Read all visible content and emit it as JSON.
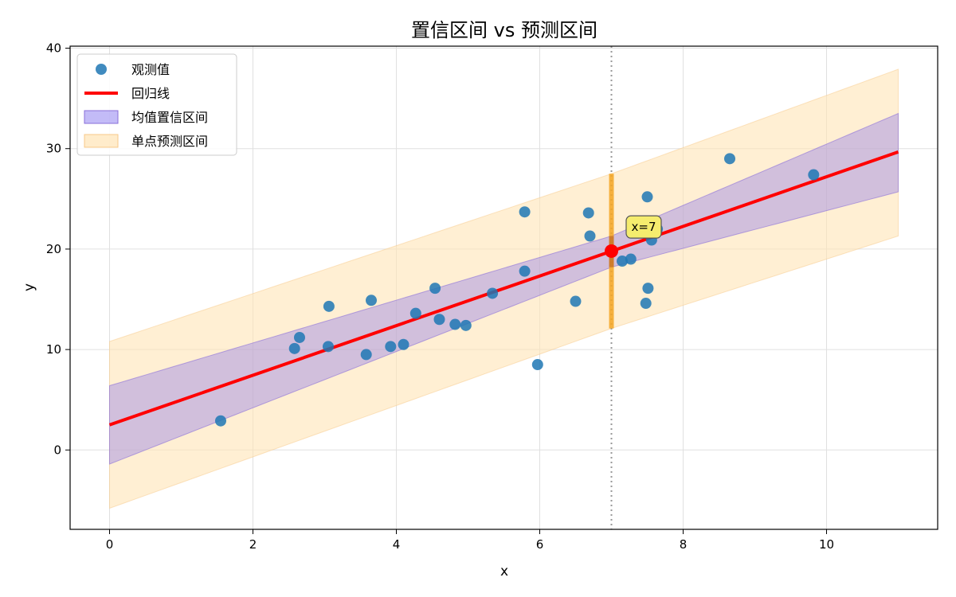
{
  "chart_data": {
    "type": "scatter",
    "title": "置信区间 vs 预测区间",
    "xlabel": "x",
    "ylabel": "y",
    "xlim": [
      -0.55,
      11.55
    ],
    "ylim": [
      -7.9,
      40.2
    ],
    "xticks": [
      0,
      2,
      4,
      6,
      8,
      10
    ],
    "yticks": [
      0,
      10,
      20,
      30,
      40
    ],
    "grid": true,
    "legend_position": "top-left",
    "colors": {
      "points": "#1f77b4",
      "regression": "#ff0000",
      "confidence": "#7b68ee",
      "prediction": "#ffe4b5",
      "marker_line": "#f5a623",
      "highlight_point": "#ff0000",
      "annotation_bg": "#f5ec6e"
    },
    "legend": [
      {
        "label": "观测值",
        "kind": "points"
      },
      {
        "label": "回归线",
        "kind": "line"
      },
      {
        "label": "均值置信区间",
        "kind": "confidence"
      },
      {
        "label": "单点预测区间",
        "kind": "prediction"
      }
    ],
    "regression": {
      "intercept": 2.5,
      "slope": 2.47,
      "x_range": [
        0,
        11
      ]
    },
    "confidence_band": {
      "x": [
        0,
        7,
        11
      ],
      "lower": [
        -1.4,
        18.2,
        25.7
      ],
      "upper": [
        6.4,
        21.3,
        33.5
      ]
    },
    "prediction_band": {
      "x": [
        0,
        7,
        11
      ],
      "lower": [
        -5.8,
        12.1,
        21.3
      ],
      "upper": [
        10.8,
        27.5,
        37.9
      ]
    },
    "vline_x": 7,
    "point_at_x": {
      "x": 7,
      "y": 19.8,
      "ci": [
        18.2,
        21.3
      ],
      "pi": [
        12.1,
        27.5
      ]
    },
    "annotation": {
      "text": "x=7",
      "x": 7.45,
      "y": 22.2
    },
    "points": [
      {
        "x": 1.55,
        "y": 2.9
      },
      {
        "x": 2.58,
        "y": 10.1
      },
      {
        "x": 2.65,
        "y": 11.2
      },
      {
        "x": 3.05,
        "y": 10.3
      },
      {
        "x": 3.06,
        "y": 14.3
      },
      {
        "x": 3.58,
        "y": 9.5
      },
      {
        "x": 3.65,
        "y": 14.9
      },
      {
        "x": 3.92,
        "y": 10.3
      },
      {
        "x": 4.1,
        "y": 10.5
      },
      {
        "x": 4.27,
        "y": 13.6
      },
      {
        "x": 4.54,
        "y": 16.1
      },
      {
        "x": 4.6,
        "y": 13.0
      },
      {
        "x": 4.82,
        "y": 12.5
      },
      {
        "x": 4.97,
        "y": 12.4
      },
      {
        "x": 5.34,
        "y": 15.6
      },
      {
        "x": 5.79,
        "y": 23.7
      },
      {
        "x": 5.79,
        "y": 17.8
      },
      {
        "x": 5.97,
        "y": 8.5
      },
      {
        "x": 6.5,
        "y": 14.8
      },
      {
        "x": 6.68,
        "y": 23.6
      },
      {
        "x": 6.7,
        "y": 21.3
      },
      {
        "x": 7.15,
        "y": 18.8
      },
      {
        "x": 7.27,
        "y": 19.0
      },
      {
        "x": 7.48,
        "y": 14.6
      },
      {
        "x": 7.5,
        "y": 25.2
      },
      {
        "x": 7.51,
        "y": 16.1
      },
      {
        "x": 7.56,
        "y": 20.9
      },
      {
        "x": 7.64,
        "y": 22.0
      },
      {
        "x": 8.65,
        "y": 29.0
      },
      {
        "x": 9.82,
        "y": 27.4
      }
    ]
  }
}
